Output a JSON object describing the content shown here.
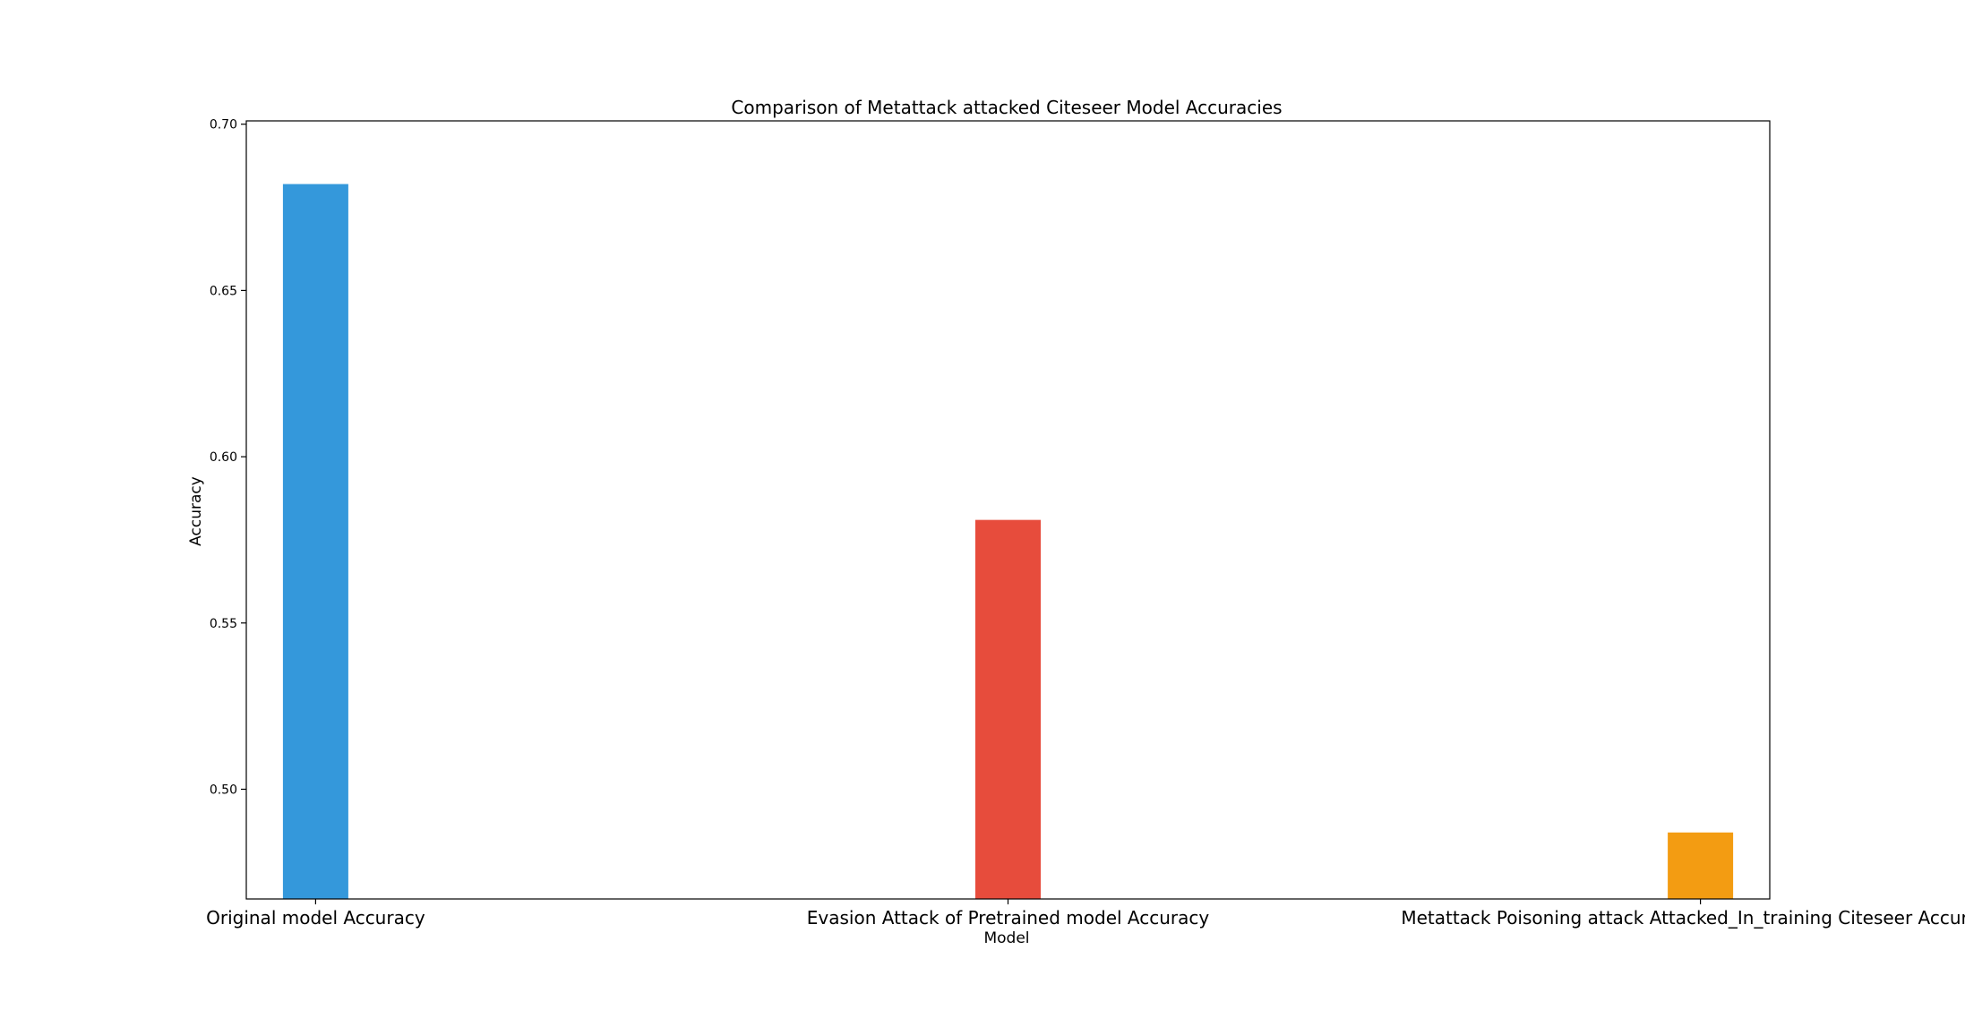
{
  "chart_data": {
    "type": "bar",
    "title": "Comparison of Metattack attacked Citeseer Model Accuracies",
    "xlabel": "Model",
    "ylabel": "Accuracy",
    "categories": [
      "Original model Accuracy",
      "Evasion Attack of Pretrained model Accuracy",
      "Metattack Poisoning attack Attacked_In_training Citeseer Accuracy"
    ],
    "values": [
      0.682,
      0.581,
      0.487
    ],
    "colors": [
      "#3498db",
      "#e74c3c",
      "#f39c12"
    ],
    "ylim": [
      0.467,
      0.701
    ],
    "yticks": [
      0.5,
      0.55,
      0.6,
      0.65,
      0.7
    ],
    "ytick_labels": [
      "0.50",
      "0.55",
      "0.60",
      "0.65",
      "0.70"
    ],
    "grid": false,
    "legend": "none"
  }
}
